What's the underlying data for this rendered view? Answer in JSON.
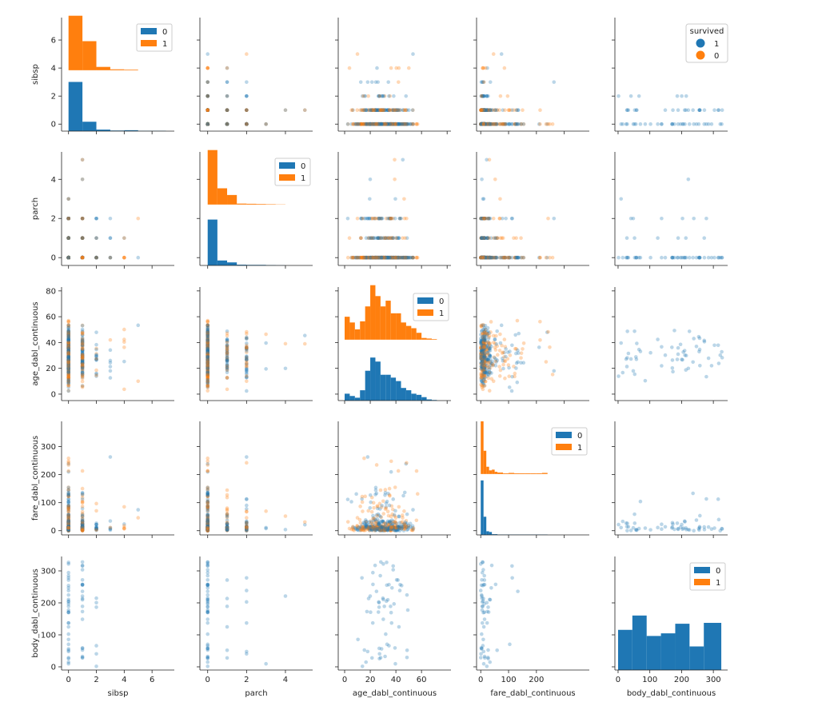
{
  "chart_data": {
    "type": "scatter",
    "variables": [
      "sibsp",
      "parch",
      "age_dabl_continuous",
      "fare_dabl_continuous",
      "body_dabl_continuous"
    ],
    "axes": {
      "sibsp": {
        "range": [
          -0.5,
          7.6
        ],
        "ticks": [
          0,
          2,
          4,
          6
        ]
      },
      "parch": {
        "range": [
          -0.4,
          5.4
        ],
        "ticks": [
          0,
          2,
          4
        ]
      },
      "age_dabl_continuous": {
        "range": [
          -5,
          83
        ],
        "ticks": [
          0,
          20,
          40,
          60,
          80
        ]
      },
      "fare_dabl_continuous": {
        "range": [
          -15,
          390
        ],
        "ticks": [
          0,
          100,
          200,
          300
        ]
      },
      "body_dabl_continuous": {
        "range": [
          -10,
          345
        ],
        "ticks": [
          0,
          100,
          200,
          300
        ]
      }
    },
    "diag_x_ticks": {
      "sibsp": [
        0,
        2,
        4,
        6
      ],
      "parch": [
        0,
        2,
        4
      ],
      "age_dabl_continuous": [
        0,
        20,
        40,
        60
      ],
      "fare_dabl_continuous": [
        0,
        100,
        200
      ],
      "body_dabl_continuous": [
        0,
        100,
        200,
        300
      ]
    },
    "series": [
      {
        "name": "0",
        "color": "#1f77b4"
      },
      {
        "name": "1",
        "color": "#ff7f0e"
      }
    ],
    "legend": {
      "title": "survived",
      "entries": [
        "1",
        "0"
      ],
      "position": "top-right"
    },
    "diag_legend_entries": [
      "0",
      "1"
    ],
    "hist": {
      "sibsp": {
        "edges": [
          0,
          1,
          2,
          3,
          4,
          5,
          6,
          7,
          8
        ],
        "class0": [
          3.25,
          0.62,
          0.1,
          0.04,
          0.06,
          0.02,
          0.02,
          0
        ],
        "class1": [
          3.6,
          1.92,
          0.22,
          0.06,
          0.04,
          0,
          0,
          0
        ]
      },
      "parch": {
        "edges": [
          0,
          0.5,
          1,
          1.5,
          2,
          2.5,
          3,
          3.5,
          4
        ],
        "class0": [
          2.4,
          0.26,
          0.16,
          0.04,
          0.03,
          0.03,
          0.02,
          0.01
        ],
        "class1": [
          2.85,
          0.85,
          0.5,
          0.05,
          0.04,
          0.03,
          0.02,
          0.01
        ]
      },
      "age_dabl_continuous": {
        "edges": [
          0,
          4,
          8,
          12,
          16,
          20,
          24,
          28,
          32,
          36,
          40,
          44,
          48,
          52,
          56,
          60,
          64,
          68,
          72
        ],
        "class0": [
          0.12,
          0.08,
          0.05,
          0.18,
          0.52,
          0.75,
          0.68,
          0.45,
          0.45,
          0.4,
          0.34,
          0.22,
          0.18,
          0.12,
          0.1,
          0.06,
          0.02,
          0.01
        ],
        "class1": [
          0.4,
          0.3,
          0.18,
          0.32,
          0.58,
          0.95,
          0.76,
          0.58,
          0.68,
          0.46,
          0.46,
          0.3,
          0.24,
          0.2,
          0.12,
          0.03,
          0.02,
          0.01
        ]
      },
      "fare_dabl_continuous": {
        "edges": [
          0,
          10,
          20,
          30,
          40,
          50,
          60,
          70,
          80,
          90,
          100,
          120,
          140,
          160,
          180,
          200,
          220,
          240
        ],
        "class0": [
          1.5,
          0.5,
          0.1,
          0.08,
          0.02,
          0.02,
          0.01,
          0.01,
          0.01,
          0.01,
          0.01,
          0.01,
          0.01,
          0.01,
          0.01,
          0.01,
          0.01
        ],
        "class1": [
          1.45,
          0.64,
          0.2,
          0.1,
          0.12,
          0.06,
          0.04,
          0.04,
          0.02,
          0.02,
          0.03,
          0.02,
          0.02,
          0.02,
          0.02,
          0.02,
          0.03
        ]
      },
      "body_dabl_continuous": {
        "edges": [
          0,
          45,
          90,
          135,
          180,
          225,
          270,
          325
        ],
        "class0": [
          2.3,
          3.12,
          1.95,
          2.1,
          2.65,
          1.35,
          2.7
        ],
        "class1": [
          0,
          0,
          0,
          0,
          0,
          0,
          0
        ]
      }
    }
  }
}
